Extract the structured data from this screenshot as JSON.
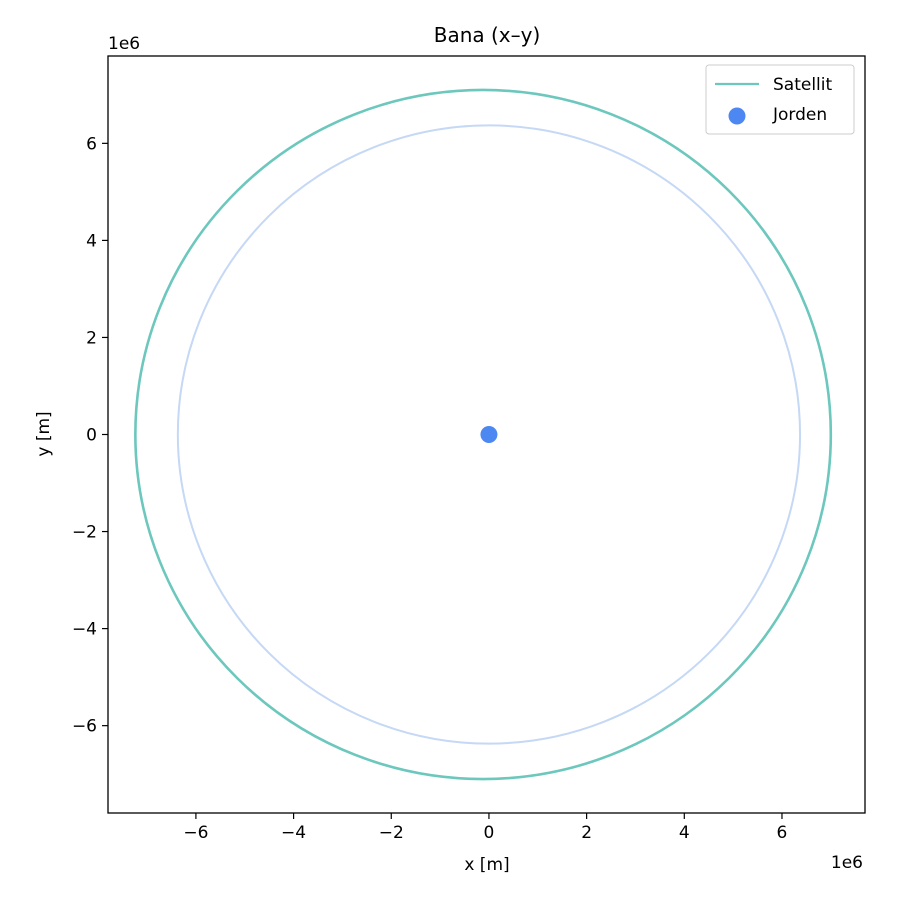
{
  "chart_data": {
    "type": "line",
    "title": "Bana (x–y)",
    "xlabel": "x [m]",
    "ylabel": "y [m]",
    "x_offset_label": "1e6",
    "y_offset_label": "1e6",
    "xlim": [
      -7.8,
      7.7
    ],
    "ylim": [
      -7.8,
      7.8
    ],
    "x_ticks": [
      -6,
      -4,
      -2,
      0,
      2,
      4,
      6
    ],
    "y_ticks": [
      -6,
      -4,
      -2,
      0,
      2,
      4,
      6
    ],
    "x_tick_labels": [
      "−6",
      "−4",
      "−2",
      "0",
      "2",
      "4",
      "6"
    ],
    "y_tick_labels": [
      "−6",
      "−4",
      "−2",
      "0",
      "2",
      "4",
      "6"
    ],
    "grid": false,
    "legend_position": "top-right",
    "series": [
      {
        "name": "Satellit",
        "kind": "orbit",
        "color": "#6cc7bd",
        "center": [
          -0.12,
          0.0
        ],
        "semi_axis_x": 7.12,
        "semi_axis_y": 7.1
      },
      {
        "name": "Jorden",
        "kind": "point",
        "color": "#4d88f2",
        "x": 0,
        "y": 0
      }
    ],
    "earth_surface": {
      "kind": "circle",
      "color": "#c5d8f5",
      "center": [
        0,
        0
      ],
      "radius": 6.37
    }
  }
}
